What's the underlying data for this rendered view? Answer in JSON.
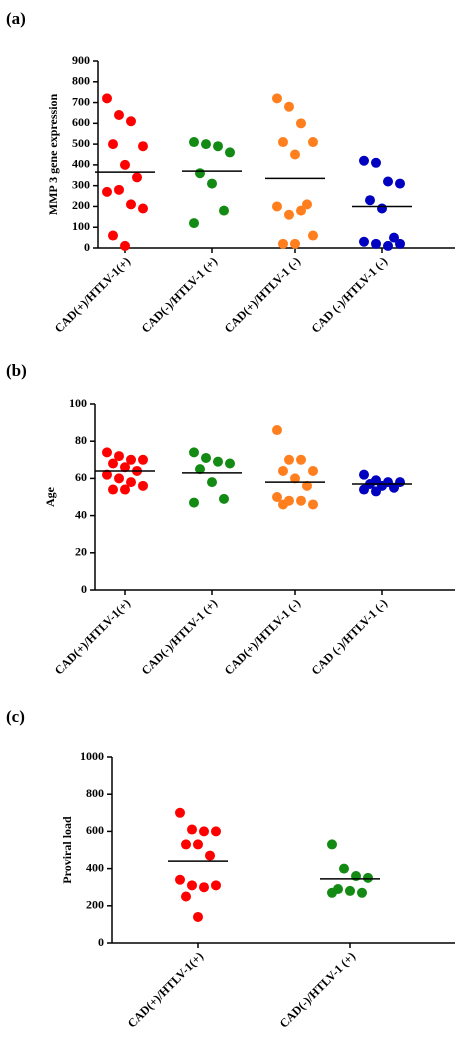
{
  "chart_data": [
    {
      "type": "strip",
      "panel_label": "(a)",
      "y_label": "MMP 3 gene expression",
      "categories": [
        "CAD(+)/HTLV-1(+)",
        "CAD(-)/HTLV-1 (+)",
        "CAD(+)/HTLV-1 (-)",
        "CAD (-)/HTLV-1 (-)"
      ],
      "groups": [
        {
          "color": "#ff0000",
          "values": [
            720,
            640,
            610,
            490,
            500,
            400,
            340,
            270,
            280,
            210,
            190,
            60,
            10
          ],
          "mean": 365
        },
        {
          "color": "#138a13",
          "values": [
            510,
            500,
            490,
            460,
            360,
            310,
            180,
            120
          ],
          "mean": 370
        },
        {
          "color": "#ff7f1f",
          "values": [
            720,
            680,
            600,
            510,
            510,
            450,
            210,
            200,
            160,
            180,
            60,
            20,
            20
          ],
          "mean": 335
        },
        {
          "color": "#0000c0",
          "values": [
            420,
            410,
            320,
            310,
            230,
            190,
            50,
            30,
            20,
            10,
            20
          ],
          "mean": 200
        }
      ],
      "ylim": [
        0,
        900
      ],
      "yticks": [
        0,
        100,
        200,
        300,
        400,
        500,
        600,
        700,
        800,
        900
      ]
    },
    {
      "type": "strip",
      "panel_label": "(b)",
      "y_label": "Age",
      "categories": [
        "CAD(+)/HTLV-1(+)",
        "CAD(-)/HTLV-1 (+)",
        "CAD(+)/HTLV-1 (-)",
        "CAD (-)/HTLV-1 (-)"
      ],
      "groups": [
        {
          "color": "#ff0000",
          "values": [
            74,
            72,
            70,
            70,
            68,
            66,
            64,
            62,
            60,
            58,
            56,
            54,
            54
          ],
          "mean": 64
        },
        {
          "color": "#138a13",
          "values": [
            74,
            71,
            69,
            68,
            65,
            58,
            49,
            47
          ],
          "mean": 63
        },
        {
          "color": "#ff7f1f",
          "values": [
            86,
            70,
            70,
            64,
            64,
            60,
            56,
            50,
            48,
            48,
            46,
            46
          ],
          "mean": 58
        },
        {
          "color": "#0000c0",
          "values": [
            62,
            59,
            58,
            58,
            57,
            56,
            55,
            54,
            53
          ],
          "mean": 57
        }
      ],
      "ylim": [
        0,
        100
      ],
      "yticks": [
        0,
        20,
        40,
        60,
        80,
        100
      ]
    },
    {
      "type": "strip",
      "panel_label": "(c)",
      "y_label": "Proviral load",
      "categories": [
        "CAD(+)/HTLV-1(+)",
        "CAD(-)/HTLV-1 (+)"
      ],
      "groups": [
        {
          "color": "#ff0000",
          "values": [
            700,
            610,
            600,
            600,
            530,
            530,
            470,
            340,
            310,
            300,
            310,
            250,
            140
          ],
          "mean": 440
        },
        {
          "color": "#138a13",
          "values": [
            530,
            400,
            360,
            350,
            290,
            280,
            270,
            270
          ],
          "mean": 345
        }
      ],
      "ylim": [
        0,
        1000
      ],
      "yticks": [
        0,
        200,
        400,
        600,
        800,
        1000
      ]
    }
  ]
}
